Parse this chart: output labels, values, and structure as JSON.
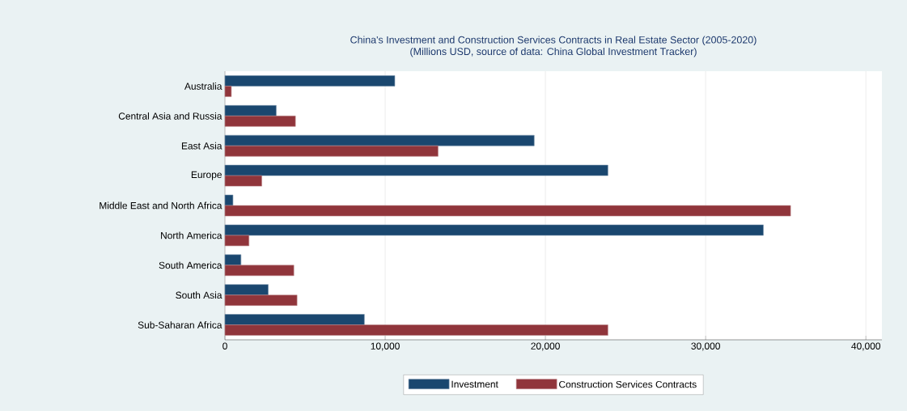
{
  "chart_data": {
    "type": "bar",
    "orientation": "horizontal",
    "title": "China's Investment and Construction Services Contracts in Real Estate Sector (2005-2020)",
    "subtitle": "(Millions USD, source of data: China Global Investment Tracker)",
    "categories": [
      "Australia",
      "Central Asia and Russia",
      "East Asia",
      "Europe",
      "Middle East and North Africa",
      "North America",
      "South America",
      "South Asia",
      "Sub-Saharan Africa"
    ],
    "series": [
      {
        "name": "Investment",
        "color": "#1a476f",
        "values": [
          10600,
          3200,
          19300,
          23900,
          500,
          33600,
          1000,
          2700,
          8700
        ]
      },
      {
        "name": "Construction Services Contracts",
        "color": "#90353b",
        "values": [
          400,
          4400,
          13300,
          2300,
          35300,
          1500,
          4300,
          4500,
          23900
        ]
      }
    ],
    "xlim": [
      0,
      41000
    ],
    "xticks": [
      0,
      {
        "value": 10000,
        "label": "10,000"
      },
      {
        "value": 20000,
        "label": "20,000"
      },
      {
        "value": 30000,
        "label": "30,000"
      },
      {
        "value": 40000,
        "label": "40,000"
      }
    ],
    "grid": "x",
    "legend": "bottom"
  }
}
